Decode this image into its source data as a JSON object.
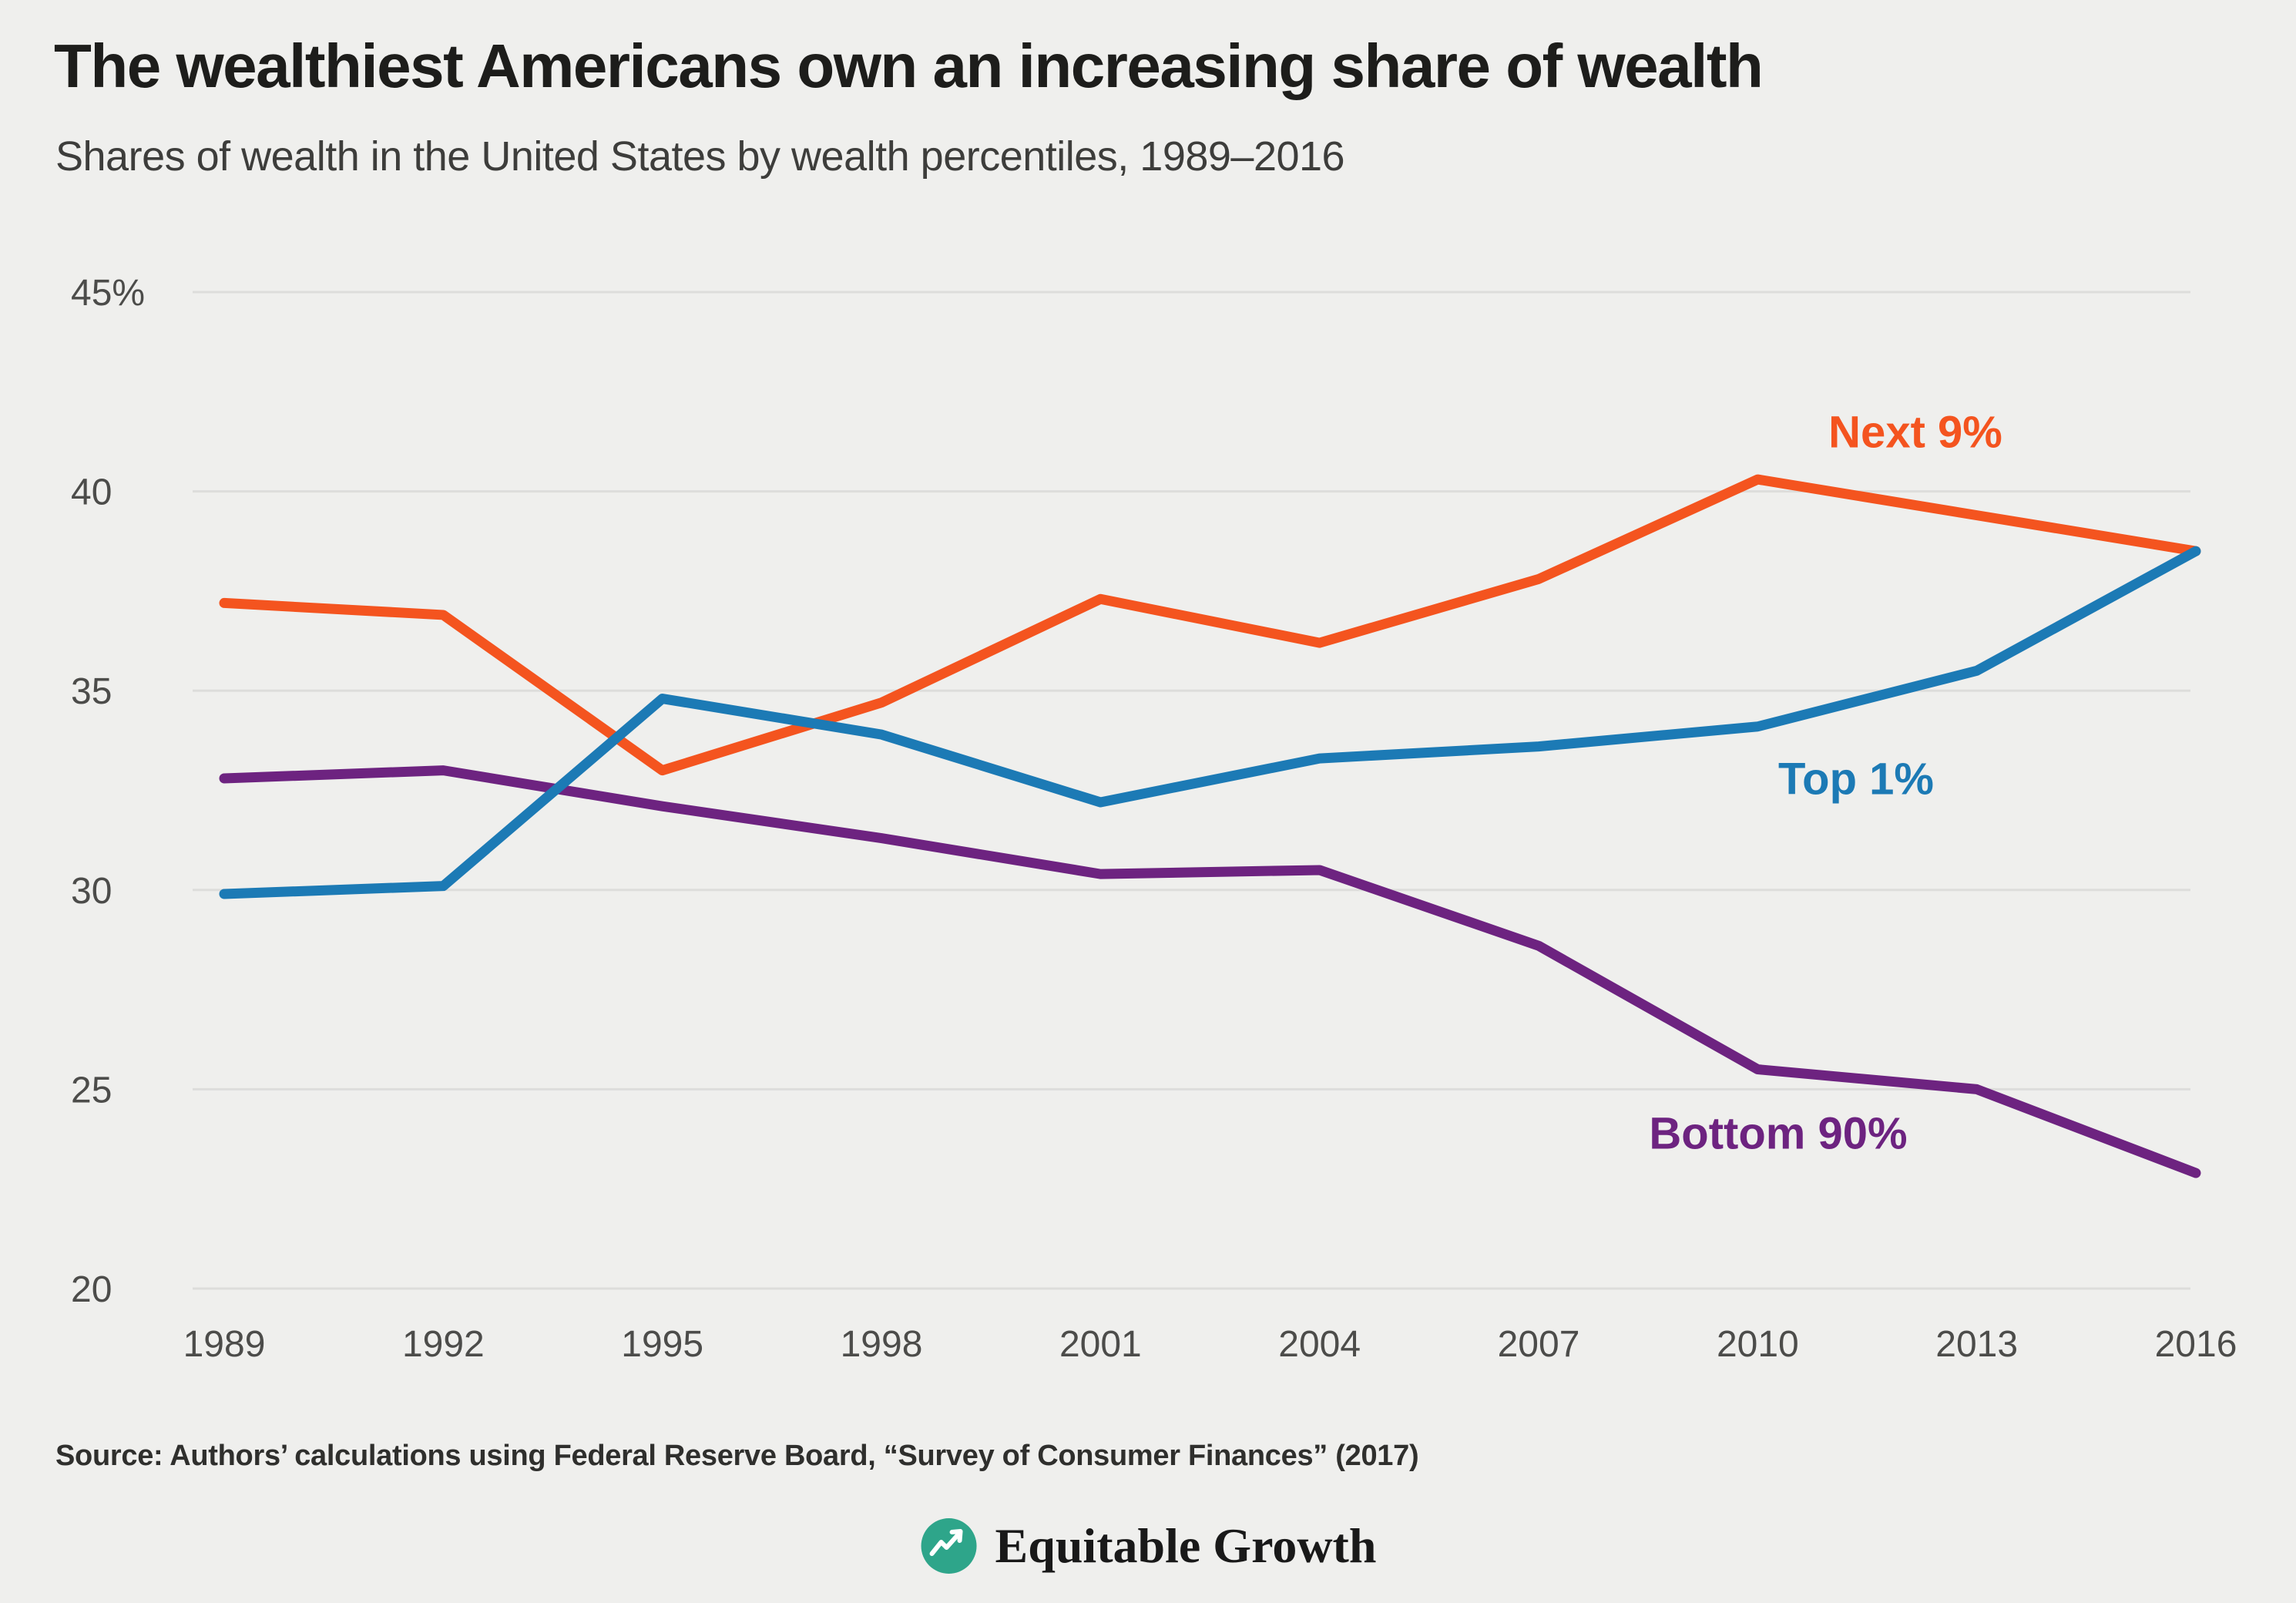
{
  "header": {
    "title": "The wealthiest Americans own an increasing share of wealth",
    "subtitle": "Shares of wealth in the United States by wealth percentiles, 1989–2016"
  },
  "chart_data": {
    "type": "line",
    "title": "The wealthiest Americans own an increasing share of wealth",
    "subtitle": "Shares of wealth in the United States by wealth percentiles, 1989–2016",
    "x": [
      1989,
      1992,
      1995,
      1998,
      2001,
      2004,
      2007,
      2010,
      2013,
      2016
    ],
    "series": [
      {
        "name": "Next 9%",
        "color": "#f4541f",
        "values": [
          37.2,
          36.9,
          33.0,
          34.7,
          37.3,
          36.2,
          37.8,
          40.3,
          39.4,
          38.5
        ]
      },
      {
        "name": "Top 1%",
        "color": "#1c7ab5",
        "values": [
          29.9,
          30.1,
          34.8,
          33.9,
          32.2,
          33.3,
          33.6,
          34.1,
          35.5,
          38.5
        ]
      },
      {
        "name": "Bottom 90%",
        "color": "#6d2380",
        "values": [
          32.8,
          33.0,
          32.1,
          31.3,
          30.4,
          30.5,
          28.6,
          25.5,
          25.0,
          22.9
        ]
      }
    ],
    "xlabel": "",
    "ylabel": "",
    "ylim": [
      20,
      45
    ],
    "yticks": [
      20,
      25,
      30,
      35,
      40,
      45
    ],
    "ytick_suffix_on_max": "%",
    "grid": true,
    "legend_position": "inline-labels",
    "background_color": "#efefed",
    "gridline_color": "#dddddb",
    "tick_label_color": "#4c4c4a"
  },
  "footer": {
    "source": "Source: Authors’ calculations using Federal Reserve Board, “Survey of Consumer Finances” (2017)",
    "logo_text": "Equitable Growth",
    "logo_color": "#2ea58a"
  }
}
